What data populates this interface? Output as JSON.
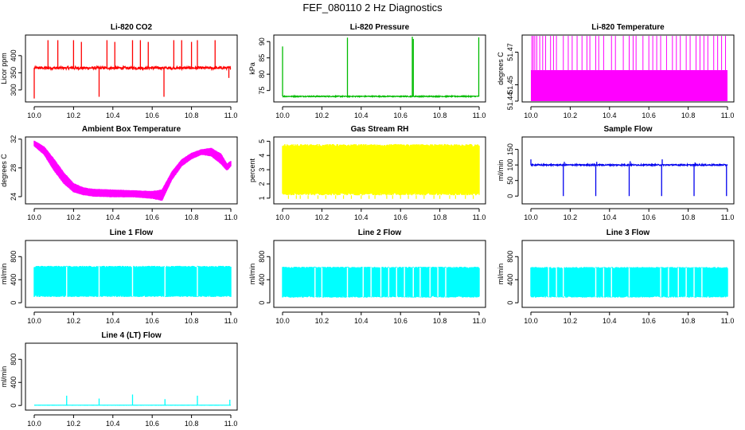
{
  "page": {
    "title": "FEF_080110  2 Hz Diagnostics"
  },
  "chart_data": [
    {
      "id": "co2",
      "type": "line",
      "title": "Li-820 CO2",
      "ylabel": "Licor ppm",
      "color": "#ff0000",
      "xlim": [
        10.0,
        11.0
      ],
      "ylim": [
        265,
        460
      ],
      "xticks": [
        10.0,
        10.2,
        10.4,
        10.6,
        10.8,
        11.0
      ],
      "xtick_labels": [
        "10.0",
        "10.2",
        "10.4",
        "10.6",
        "10.8",
        "11.0"
      ],
      "yticks": [
        300,
        350,
        400
      ],
      "ytick_labels": [
        "300",
        "350",
        "400"
      ],
      "baseline": 364,
      "noise": 4,
      "band": false,
      "spikes": [
        {
          "x": 10.0,
          "y": 275
        },
        {
          "x": 10.07,
          "y": 445
        },
        {
          "x": 10.12,
          "y": 445
        },
        {
          "x": 10.2,
          "y": 445
        },
        {
          "x": 10.24,
          "y": 440
        },
        {
          "x": 10.33,
          "y": 280
        },
        {
          "x": 10.37,
          "y": 445
        },
        {
          "x": 10.41,
          "y": 440
        },
        {
          "x": 10.5,
          "y": 445
        },
        {
          "x": 10.54,
          "y": 445
        },
        {
          "x": 10.58,
          "y": 440
        },
        {
          "x": 10.66,
          "y": 280
        },
        {
          "x": 10.71,
          "y": 445
        },
        {
          "x": 10.75,
          "y": 445
        },
        {
          "x": 10.8,
          "y": 440
        },
        {
          "x": 10.83,
          "y": 445
        },
        {
          "x": 10.92,
          "y": 445
        },
        {
          "x": 10.99,
          "y": 335
        }
      ]
    },
    {
      "id": "pressure",
      "type": "line",
      "title": "Li-820 Pressure",
      "ylabel": "kPa",
      "color": "#00bb00",
      "xlim": [
        10.0,
        11.0
      ],
      "ylim": [
        71.5,
        92
      ],
      "xticks": [
        10.0,
        10.2,
        10.4,
        10.6,
        10.8,
        11.0
      ],
      "xtick_labels": [
        "10.0",
        "10.2",
        "10.4",
        "10.6",
        "10.8",
        "11.0"
      ],
      "yticks": [
        75,
        80,
        85,
        90
      ],
      "ytick_labels": [
        "75",
        "80",
        "85",
        "90"
      ],
      "baseline": 73.2,
      "noise": 0.15,
      "band": false,
      "spikes": [
        {
          "x": 10.0,
          "y": 88.5
        },
        {
          "x": 10.33,
          "y": 91.2
        },
        {
          "x": 10.66,
          "y": 91.5
        },
        {
          "x": 10.665,
          "y": 90.8
        },
        {
          "x": 10.998,
          "y": 91.3
        }
      ]
    },
    {
      "id": "temperature",
      "type": "line",
      "title": "Li-820 Temperature",
      "ylabel": "degrees C",
      "color": "#ff00ff",
      "xlim": [
        10.0,
        11.0
      ],
      "ylim": [
        51.4395,
        51.4805
      ],
      "xticks": [
        10.0,
        10.2,
        10.4,
        10.6,
        10.8,
        11.0
      ],
      "xtick_labels": [
        "10.0",
        "10.2",
        "10.4",
        "10.6",
        "10.8",
        "11.0"
      ],
      "yticks": [
        51.44,
        51.45,
        51.47
      ],
      "ytick_labels": [
        "51.44",
        "51.45",
        "51.47"
      ],
      "band": true,
      "band_low": 51.44,
      "band_high": 51.459,
      "spike_level": 51.48,
      "spikes": [
        {
          "x": 10.005
        },
        {
          "x": 10.012
        },
        {
          "x": 10.02
        },
        {
          "x": 10.03
        },
        {
          "x": 10.045
        },
        {
          "x": 10.06
        },
        {
          "x": 10.075
        },
        {
          "x": 10.1
        },
        {
          "x": 10.115
        },
        {
          "x": 10.13
        },
        {
          "x": 10.165
        },
        {
          "x": 10.19
        },
        {
          "x": 10.21
        },
        {
          "x": 10.235
        },
        {
          "x": 10.26
        },
        {
          "x": 10.285
        },
        {
          "x": 10.3
        },
        {
          "x": 10.33
        },
        {
          "x": 10.345
        },
        {
          "x": 10.37
        },
        {
          "x": 10.41
        },
        {
          "x": 10.43
        },
        {
          "x": 10.47
        },
        {
          "x": 10.5
        },
        {
          "x": 10.52
        },
        {
          "x": 10.535
        },
        {
          "x": 10.57
        },
        {
          "x": 10.6
        },
        {
          "x": 10.62
        },
        {
          "x": 10.64
        },
        {
          "x": 10.66
        },
        {
          "x": 10.69
        },
        {
          "x": 10.72
        },
        {
          "x": 10.74
        },
        {
          "x": 10.76
        },
        {
          "x": 10.79
        },
        {
          "x": 10.81
        },
        {
          "x": 10.84
        },
        {
          "x": 10.86
        },
        {
          "x": 10.88
        },
        {
          "x": 10.9
        },
        {
          "x": 10.93
        },
        {
          "x": 10.95
        },
        {
          "x": 10.97
        },
        {
          "x": 10.99
        }
      ]
    },
    {
      "id": "ambient",
      "type": "area",
      "title": "Ambient Box Temperature",
      "ylabel": "degrees C",
      "color": "#ff00ff",
      "xlim": [
        10.0,
        11.0
      ],
      "ylim": [
        23.0,
        32.3
      ],
      "xticks": [
        10.0,
        10.2,
        10.4,
        10.6,
        10.8,
        11.0
      ],
      "xtick_labels": [
        "10.0",
        "10.2",
        "10.4",
        "10.6",
        "10.8",
        "11.0"
      ],
      "yticks": [
        24,
        28,
        32
      ],
      "ytick_labels": [
        "24",
        "28",
        "32"
      ],
      "upper": [
        [
          10.0,
          31.8
        ],
        [
          10.05,
          31.0
        ],
        [
          10.1,
          29.3
        ],
        [
          10.15,
          27.4
        ],
        [
          10.2,
          25.9
        ],
        [
          10.25,
          25.3
        ],
        [
          10.3,
          25.1
        ],
        [
          10.4,
          25.0
        ],
        [
          10.5,
          24.9
        ],
        [
          10.6,
          24.8
        ],
        [
          10.65,
          25.0
        ],
        [
          10.7,
          27.5
        ],
        [
          10.75,
          29.2
        ],
        [
          10.8,
          30.1
        ],
        [
          10.85,
          30.6
        ],
        [
          10.9,
          30.8
        ],
        [
          10.95,
          30.0
        ],
        [
          10.98,
          28.6
        ],
        [
          11.0,
          29.0
        ]
      ],
      "lower": [
        [
          10.0,
          31.0
        ],
        [
          10.05,
          29.8
        ],
        [
          10.1,
          27.6
        ],
        [
          10.15,
          25.8
        ],
        [
          10.2,
          24.6
        ],
        [
          10.25,
          24.2
        ],
        [
          10.3,
          24.0
        ],
        [
          10.4,
          23.9
        ],
        [
          10.5,
          23.9
        ],
        [
          10.6,
          23.7
        ],
        [
          10.65,
          23.4
        ],
        [
          10.7,
          26.3
        ],
        [
          10.75,
          28.2
        ],
        [
          10.8,
          29.2
        ],
        [
          10.85,
          29.8
        ],
        [
          10.9,
          29.6
        ],
        [
          10.95,
          28.5
        ],
        [
          10.98,
          27.6
        ],
        [
          11.0,
          28.2
        ]
      ]
    },
    {
      "id": "rh",
      "type": "area",
      "title": "Gas Stream RH",
      "ylabel": "percent",
      "color": "#ffff00",
      "xlim": [
        10.0,
        11.0
      ],
      "ylim": [
        0.6,
        5.3
      ],
      "xticks": [
        10.0,
        10.2,
        10.4,
        10.6,
        10.8,
        11.0
      ],
      "xtick_labels": [
        "10.0",
        "10.2",
        "10.4",
        "10.6",
        "10.8",
        "11.0"
      ],
      "yticks": [
        1,
        2,
        3,
        4,
        5
      ],
      "ytick_labels": [
        "1",
        "2",
        "3",
        "4",
        "5"
      ],
      "upper": [
        [
          10.0,
          4.8
        ],
        [
          11.0,
          4.8
        ]
      ],
      "lower": [
        [
          10.0,
          1.2
        ],
        [
          11.0,
          1.2
        ]
      ],
      "dips": [
        10.03,
        10.07,
        10.09,
        10.13,
        10.18,
        10.22,
        10.27,
        10.31,
        10.35,
        10.4,
        10.44,
        10.47,
        10.53,
        10.56,
        10.6,
        10.64,
        10.68,
        10.72,
        10.77,
        10.8,
        10.85,
        10.88,
        10.93,
        10.97
      ],
      "dip_level": 0.95
    },
    {
      "id": "sample",
      "type": "line",
      "title": "Sample Flow",
      "ylabel": "ml/min",
      "color": "#0000ee",
      "xlim": [
        10.0,
        11.0
      ],
      "ylim": [
        -25,
        190
      ],
      "xticks": [
        10.0,
        10.2,
        10.4,
        10.6,
        10.8,
        11.0
      ],
      "xtick_labels": [
        "10.0",
        "10.2",
        "10.4",
        "10.6",
        "10.8",
        "11.0"
      ],
      "yticks": [
        0,
        50,
        100,
        150
      ],
      "ytick_labels": [
        "0",
        "50",
        "100",
        "150"
      ],
      "baseline": 100,
      "noise": 2,
      "band": false,
      "spikes": [
        {
          "x": 10.0,
          "y": 118
        },
        {
          "x": 10.165,
          "y": 0
        },
        {
          "x": 10.17,
          "y": 110
        },
        {
          "x": 10.33,
          "y": 0
        },
        {
          "x": 10.335,
          "y": 110
        },
        {
          "x": 10.5,
          "y": 0
        },
        {
          "x": 10.505,
          "y": 112
        },
        {
          "x": 10.665,
          "y": 0
        },
        {
          "x": 10.668,
          "y": 118
        },
        {
          "x": 10.83,
          "y": 0
        },
        {
          "x": 10.835,
          "y": 108
        },
        {
          "x": 10.995,
          "y": 0
        }
      ]
    },
    {
      "id": "line1",
      "type": "area",
      "title": "Line 1 Flow",
      "ylabel": "ml/min",
      "color": "#00ffff",
      "xlim": [
        10.0,
        11.0
      ],
      "ylim": [
        -80,
        1080
      ],
      "xticks": [
        10.0,
        10.2,
        10.4,
        10.6,
        10.8,
        11.0
      ],
      "xtick_labels": [
        "10.0",
        "10.2",
        "10.4",
        "10.6",
        "10.8",
        "11.0"
      ],
      "yticks": [
        0,
        400,
        800
      ],
      "ytick_labels": [
        "0",
        "400",
        "800"
      ],
      "upper": [
        [
          10.0,
          640
        ],
        [
          11.0,
          640
        ]
      ],
      "lower": [
        [
          10.0,
          100
        ],
        [
          11.0,
          100
        ]
      ],
      "gaps": [
        10.165,
        10.33,
        10.5,
        10.665,
        10.83
      ]
    },
    {
      "id": "line2",
      "type": "area",
      "title": "Line 2 Flow",
      "ylabel": "ml/min",
      "color": "#00ffff",
      "xlim": [
        10.0,
        11.0
      ],
      "ylim": [
        -80,
        1080
      ],
      "xticks": [
        10.0,
        10.2,
        10.4,
        10.6,
        10.8,
        11.0
      ],
      "xtick_labels": [
        "10.0",
        "10.2",
        "10.4",
        "10.6",
        "10.8",
        "11.0"
      ],
      "yticks": [
        0,
        400,
        800
      ],
      "ytick_labels": [
        "0",
        "400",
        "800"
      ],
      "upper": [
        [
          10.0,
          625
        ],
        [
          11.0,
          625
        ]
      ],
      "lower": [
        [
          10.0,
          90
        ],
        [
          11.0,
          90
        ]
      ],
      "gaps": [
        10.165,
        10.2,
        10.33,
        10.41,
        10.45,
        10.5,
        10.54,
        10.58,
        10.62,
        10.665,
        10.7,
        10.75,
        10.79,
        10.83
      ]
    },
    {
      "id": "line3",
      "type": "area",
      "title": "Line 3 Flow",
      "ylabel": "ml/min",
      "color": "#00ffff",
      "xlim": [
        10.0,
        11.0
      ],
      "ylim": [
        -80,
        1080
      ],
      "xticks": [
        10.0,
        10.2,
        10.4,
        10.6,
        10.8,
        11.0
      ],
      "xtick_labels": [
        "10.0",
        "10.2",
        "10.4",
        "10.6",
        "10.8",
        "11.0"
      ],
      "yticks": [
        0,
        400,
        800
      ],
      "ytick_labels": [
        "0",
        "400",
        "800"
      ],
      "upper": [
        [
          10.0,
          620
        ],
        [
          11.0,
          620
        ]
      ],
      "lower": [
        [
          10.0,
          90
        ],
        [
          11.0,
          90
        ]
      ],
      "gaps": [
        10.09,
        10.13,
        10.165,
        10.33,
        10.37,
        10.41,
        10.5,
        10.66,
        10.7,
        10.75,
        10.79,
        10.83,
        10.87
      ]
    },
    {
      "id": "line4",
      "type": "line",
      "title": "Line 4 (LT) Flow",
      "ylabel": "ml/min",
      "color": "#00ffff",
      "xlim": [
        10.0,
        11.0
      ],
      "ylim": [
        -80,
        1080
      ],
      "xticks": [
        10.0,
        10.2,
        10.4,
        10.6,
        10.8,
        11.0
      ],
      "xtick_labels": [
        "10.0",
        "10.2",
        "10.4",
        "10.6",
        "10.8",
        "11.0"
      ],
      "yticks": [
        0,
        400,
        800
      ],
      "ytick_labels": [
        "0",
        "400",
        "800"
      ],
      "baseline": 5,
      "noise": 1,
      "band": false,
      "spikes": [
        {
          "x": 10.165,
          "y": 170
        },
        {
          "x": 10.33,
          "y": 120
        },
        {
          "x": 10.5,
          "y": 190
        },
        {
          "x": 10.665,
          "y": 110
        },
        {
          "x": 10.83,
          "y": 170
        },
        {
          "x": 10.995,
          "y": 100
        }
      ]
    }
  ]
}
